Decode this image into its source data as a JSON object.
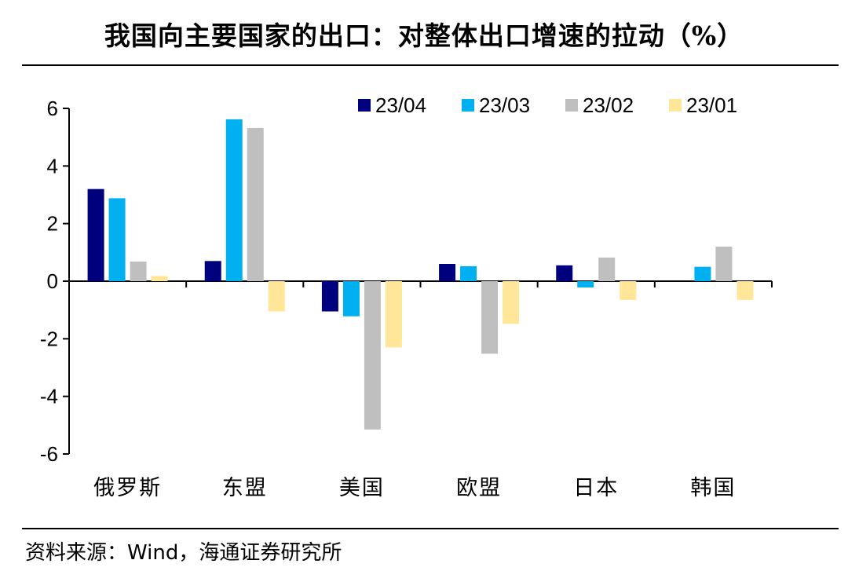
{
  "title": "我国向主要国家的出口：对整体出口增速的拉动（%）",
  "source": "资料来源：Wind，海通证券研究所",
  "chart_data": {
    "type": "bar",
    "categories": [
      "俄罗斯",
      "东盟",
      "美国",
      "欧盟",
      "日本",
      "韩国"
    ],
    "series": [
      {
        "name": "23/04",
        "color": "#00007f",
        "values": [
          3.2,
          0.7,
          -1.05,
          0.6,
          0.55,
          0.0
        ]
      },
      {
        "name": "23/03",
        "color": "#00b0f0",
        "values": [
          2.88,
          5.62,
          -1.22,
          0.52,
          -0.22,
          0.5
        ]
      },
      {
        "name": "23/02",
        "color": "#bfbfbf",
        "values": [
          0.68,
          5.32,
          -5.15,
          -2.52,
          0.82,
          1.2
        ]
      },
      {
        "name": "23/01",
        "color": "#ffe699",
        "values": [
          0.18,
          -1.05,
          -2.3,
          -1.48,
          -0.65,
          -0.65
        ]
      }
    ],
    "yticks": [
      6,
      4,
      2,
      0,
      -2,
      -4,
      -6
    ],
    "ylim": [
      -6,
      6
    ],
    "legend_position": "top-right",
    "grid": false
  }
}
